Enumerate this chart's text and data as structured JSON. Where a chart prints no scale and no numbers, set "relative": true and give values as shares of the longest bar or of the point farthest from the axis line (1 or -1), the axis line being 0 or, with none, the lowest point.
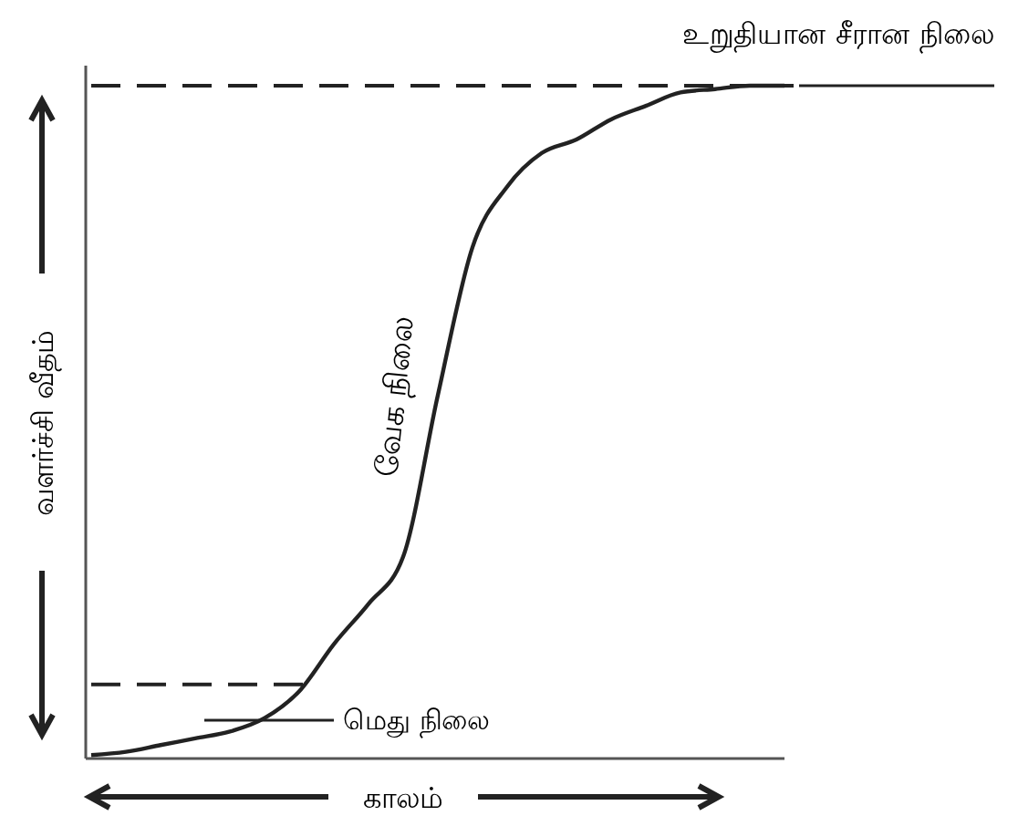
{
  "chart_data": {
    "type": "line",
    "relative": true,
    "xlabel": "காலம்",
    "ylabel": "வளர்ச்சி வீதம்",
    "categories": [
      null,
      null,
      null,
      null,
      null,
      null,
      null,
      null,
      null,
      null,
      null,
      null,
      null,
      null,
      null,
      null,
      null,
      null,
      null,
      null,
      null
    ],
    "series": [
      {
        "color": "#222222",
        "values": [
          0.005,
          0.01,
          0.02,
          0.03,
          0.04,
          0.06,
          0.1,
          0.17,
          0.23,
          0.3,
          0.54,
          0.76,
          0.85,
          0.9,
          0.92,
          0.95,
          0.97,
          0.99,
          0.995,
          1,
          1
        ]
      }
    ],
    "ref_lines": [
      {
        "axis": "y",
        "value": 1,
        "line_style": "dashed",
        "color": "#222222"
      },
      {
        "axis": "y",
        "value": 0.11,
        "line_style": "dashed",
        "color": "#222222"
      }
    ],
    "annotations": [
      "உறுதியான சீரான நிலை",
      "வேக நிலை",
      "மெது நிலை"
    ],
    "marker": "none",
    "line_style": "solid",
    "grid": false
  }
}
